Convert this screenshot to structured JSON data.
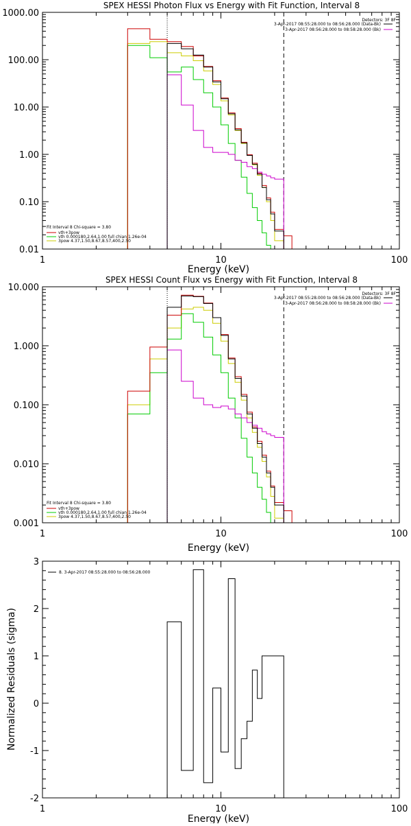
{
  "chart_data": [
    {
      "type": "line",
      "title": "SPEX HESSI Photon Flux vs Energy with Fit Function, Interval 8",
      "xlabel": "Energy (keV)",
      "ylabel": "",
      "xscale": "log",
      "yscale": "log",
      "xlim": [
        1,
        100
      ],
      "ylim": [
        0.01,
        1000
      ],
      "x_ticks": [
        "1",
        "10",
        "100"
      ],
      "y_ticks": [
        "0.01",
        "0.10",
        "1.00",
        "10.00",
        "100.00",
        "1000.00"
      ],
      "y_tick_values": [
        0.01,
        0.1,
        1,
        10,
        100,
        1000
      ],
      "legend_top_right": {
        "header": "Detectors: 3F 8F",
        "lines": [
          {
            "text": "3-Apr-2017 08:55:28.000 to 08:56:28.000 (Data-Bk)",
            "color": "#000000"
          },
          {
            "text": "3-Apr-2017 08:56:28.000 to 08:58:28.000 (Bk)",
            "color": "#cc00cc"
          }
        ]
      },
      "legend_bottom_left": {
        "header": "Fit Interval 8   Chi-square = 3.80",
        "lines": [
          {
            "text": "vth+3pow",
            "color": "#cc0000"
          },
          {
            "text": "vth 0.000180,2.64,1.00   full chian 1.26e-04",
            "color": "#00cc00"
          },
          {
            "text": "3pow 4.37,1.50,8.67,8.57,400,2.50",
            "color": "#cccc00"
          }
        ]
      },
      "vlines": [
        {
          "x": 5.0,
          "style": "dotted",
          "color": "#000000"
        },
        {
          "x": 22.5,
          "style": "dashed",
          "color": "#000000"
        }
      ],
      "x_edges": [
        3.0,
        4.0,
        5.0,
        6.0,
        7.0,
        8.0,
        9.0,
        10.0,
        11.0,
        12.0,
        13.0,
        14.0,
        15.0,
        16.0,
        17.0,
        18.0,
        19.0,
        20.0,
        22.5,
        25.0
      ],
      "series": [
        {
          "name": "Data-Bk",
          "color": "#000000",
          "values": [
            null,
            null,
            220,
            170,
            125,
            70,
            34,
            15,
            7.2,
            3.3,
            1.75,
            0.95,
            0.62,
            0.38,
            0.2,
            0.11,
            0.055,
            0.024,
            null
          ]
        },
        {
          "name": "Bk",
          "color": "#cc00cc",
          "values": [
            null,
            null,
            48,
            11,
            3.2,
            1.4,
            1.1,
            1.1,
            1.0,
            0.75,
            0.68,
            0.55,
            0.5,
            0.42,
            0.38,
            0.35,
            0.32,
            0.3,
            null
          ]
        },
        {
          "name": "vth+3pow",
          "color": "#cc0000",
          "values": [
            450,
            270,
            240,
            190,
            120,
            72,
            36,
            15.5,
            7.5,
            3.5,
            1.8,
            0.98,
            0.65,
            0.4,
            0.22,
            0.12,
            0.06,
            0.026,
            0.019
          ]
        },
        {
          "name": "vth",
          "color": "#00cc00",
          "values": [
            200,
            110,
            55,
            70,
            38,
            20,
            10,
            4.2,
            1.7,
            0.75,
            0.33,
            0.15,
            0.075,
            0.04,
            0.022,
            0.012,
            null,
            null,
            null
          ]
        },
        {
          "name": "3pow",
          "color": "#cccc00",
          "values": [
            220,
            240,
            140,
            120,
            95,
            58,
            30,
            13.5,
            6.8,
            3.2,
            1.7,
            0.95,
            0.6,
            0.36,
            0.2,
            0.1,
            0.04,
            0.015,
            null
          ]
        }
      ]
    },
    {
      "type": "line",
      "title": "SPEX HESSI Count Flux vs Energy with Fit Function, Interval 8",
      "xlabel": "Energy (keV)",
      "ylabel": "",
      "xscale": "log",
      "yscale": "log",
      "xlim": [
        1,
        100
      ],
      "ylim": [
        0.001,
        10
      ],
      "x_ticks": [
        "1",
        "10",
        "100"
      ],
      "y_ticks": [
        "0.001",
        "0.010",
        "0.100",
        "1.000",
        "10.000"
      ],
      "y_tick_values": [
        0.001,
        0.01,
        0.1,
        1,
        10
      ],
      "legend_top_right": {
        "header": "Detectors: 3F 8F",
        "lines": [
          {
            "text": "3-Apr-2017 08:55:28.000 to 08:56:28.000 (Data-Bk)",
            "color": "#000000"
          },
          {
            "text": "3-Apr-2017 08:56:28.000 to 08:58:28.000 (Bk)",
            "color": "#cc00cc"
          }
        ]
      },
      "legend_bottom_left": {
        "header": "Fit Interval 8   Chi-square = 3.80",
        "lines": [
          {
            "text": "vth+3pow",
            "color": "#cc0000"
          },
          {
            "text": "vth 0.000180,2.64,1.00   full chian 1.26e-04",
            "color": "#00cc00"
          },
          {
            "text": "3pow 4.37,1.50,8.67,8.57,400,2.50",
            "color": "#cccc00"
          }
        ]
      },
      "vlines": [
        {
          "x": 5.0,
          "style": "dotted",
          "color": "#000000"
        },
        {
          "x": 22.5,
          "style": "dashed",
          "color": "#000000"
        }
      ],
      "x_edges": [
        3.0,
        4.0,
        5.0,
        6.0,
        7.0,
        8.0,
        9.0,
        10.0,
        11.0,
        12.0,
        13.0,
        14.0,
        15.0,
        16.0,
        17.0,
        18.0,
        19.0,
        20.0,
        22.5,
        25.0
      ],
      "series": [
        {
          "name": "Data-Bk",
          "color": "#000000",
          "values": [
            null,
            null,
            4.5,
            7.0,
            6.8,
            5.2,
            3.0,
            1.5,
            0.6,
            0.28,
            0.14,
            0.07,
            0.04,
            0.022,
            0.013,
            0.007,
            0.004,
            0.002,
            null
          ]
        },
        {
          "name": "Bk",
          "color": "#cc00cc",
          "values": [
            null,
            null,
            0.85,
            0.25,
            0.13,
            0.1,
            0.09,
            0.095,
            0.085,
            0.07,
            0.06,
            0.05,
            0.045,
            0.04,
            0.035,
            0.032,
            0.03,
            0.028,
            null
          ]
        },
        {
          "name": "vth+3pow",
          "color": "#cc0000",
          "values": [
            0.17,
            0.95,
            3.3,
            7.2,
            6.9,
            5.3,
            3.0,
            1.55,
            0.62,
            0.3,
            0.15,
            0.075,
            0.042,
            0.024,
            0.014,
            0.0075,
            0.0042,
            0.0022,
            0.0016
          ]
        },
        {
          "name": "vth",
          "color": "#00cc00",
          "values": [
            0.07,
            0.35,
            1.3,
            3.5,
            2.5,
            1.4,
            0.7,
            0.35,
            0.13,
            0.06,
            0.027,
            0.013,
            0.007,
            0.004,
            0.0025,
            0.0015,
            null,
            null,
            null
          ]
        },
        {
          "name": "3pow",
          "color": "#cccc00",
          "values": [
            0.1,
            0.6,
            2.0,
            4.2,
            4.5,
            4.0,
            2.4,
            1.2,
            0.5,
            0.24,
            0.12,
            0.06,
            0.034,
            0.019,
            0.011,
            0.006,
            0.0028,
            0.0012,
            null
          ]
        }
      ]
    },
    {
      "type": "line",
      "title": "",
      "xlabel": "Energy (keV)",
      "ylabel": "Normalized Residuals (sigma)",
      "xscale": "log",
      "yscale": "linear",
      "xlim": [
        1,
        100
      ],
      "ylim": [
        -2,
        3
      ],
      "x_ticks": [
        "1",
        "10",
        "100"
      ],
      "y_ticks": [
        "-2",
        "-1",
        "0",
        "1",
        "2",
        "3"
      ],
      "y_tick_values": [
        -2,
        -1,
        0,
        1,
        2,
        3
      ],
      "legend": {
        "text": "8.  3-Apr-2017 08:55:28.000 to 08:56:28.000",
        "color": "#000000"
      },
      "x_edges": [
        5.0,
        6.0,
        7.0,
        8.0,
        9.0,
        10.0,
        11.0,
        12.0,
        13.0,
        14.0,
        15.0,
        16.0,
        17.0,
        18.0,
        19.0,
        20.0,
        22.5
      ],
      "series": [
        {
          "name": "",
          "color": "#000000",
          "values": [
            1.72,
            -1.42,
            2.82,
            -1.68,
            0.32,
            -1.03,
            2.63,
            -1.38,
            -0.75,
            -0.38,
            0.7,
            0.1,
            1.0,
            1.0,
            1.0,
            1.0
          ]
        }
      ]
    }
  ]
}
